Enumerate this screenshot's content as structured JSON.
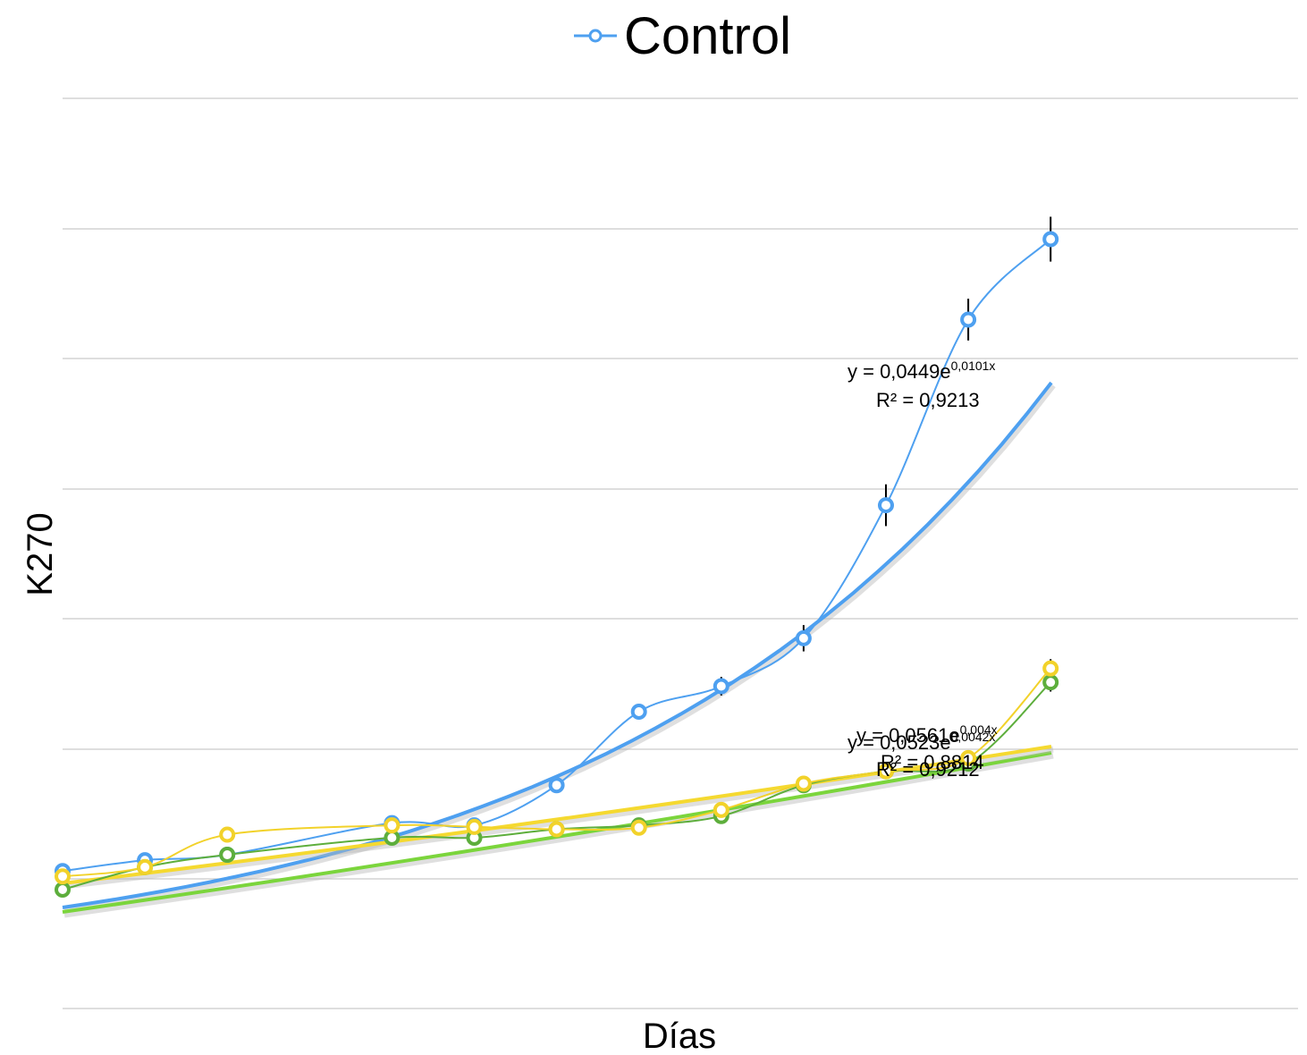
{
  "chart_data": {
    "type": "line",
    "title": "",
    "xlabel": "Días",
    "ylabel": "K270",
    "legend": {
      "placement": "top-center",
      "entries": [
        "Control"
      ]
    },
    "grid": {
      "horizontal": true,
      "vertical": false,
      "lines": 8
    },
    "x_points": 13,
    "series": [
      {
        "name": "Control",
        "color": "#4EA0F0",
        "values": [
          0.09,
          0.23,
          0.3,
          null,
          0.71,
          0.68,
          1.2,
          2.15,
          2.48,
          3.1,
          4.82,
          7.22,
          8.26
        ],
        "errors": [
          0,
          0,
          0,
          0,
          0,
          0,
          0.08,
          0.1,
          0.12,
          0.17,
          0.27,
          0.27,
          0.29
        ],
        "trend": {
          "type": "exponential",
          "equation_base": "y = 0,0449e",
          "equation_exp": "0,0101x",
          "r2": "R² = 0,9213",
          "color": "#4EA0F0"
        }
      },
      {
        "color": "#5DAE3C",
        "values": [
          -0.15,
          0.14,
          0.3,
          null,
          0.52,
          0.52,
          0.63,
          0.68,
          0.8,
          1.2,
          1.38,
          1.48,
          2.53
        ],
        "errors": [
          0,
          0,
          0,
          0,
          0,
          0,
          0,
          0,
          0,
          0.08,
          0.09,
          0.08,
          0.12
        ],
        "trend": {
          "type": "exponential",
          "equation_base": "y = 0,0523e",
          "equation_exp": "0,0042x",
          "r2": "R² = 0,9212",
          "color": "#7BD53C"
        }
      },
      {
        "color": "#F2D22A",
        "values": [
          0.02,
          0.14,
          0.56,
          null,
          0.68,
          0.66,
          0.63,
          0.65,
          0.88,
          1.22,
          1.38,
          1.55,
          2.71
        ],
        "errors": [
          0,
          0,
          0,
          0,
          0,
          0,
          0,
          0,
          0,
          0,
          0,
          0,
          0.12
        ],
        "trend": {
          "type": "exponential",
          "equation_base": "y = 0,0561e",
          "equation_exp": "0,004x",
          "r2": "R² = 0,8814",
          "color": "#F5D930"
        }
      }
    ],
    "hidden_point_index": 3
  }
}
